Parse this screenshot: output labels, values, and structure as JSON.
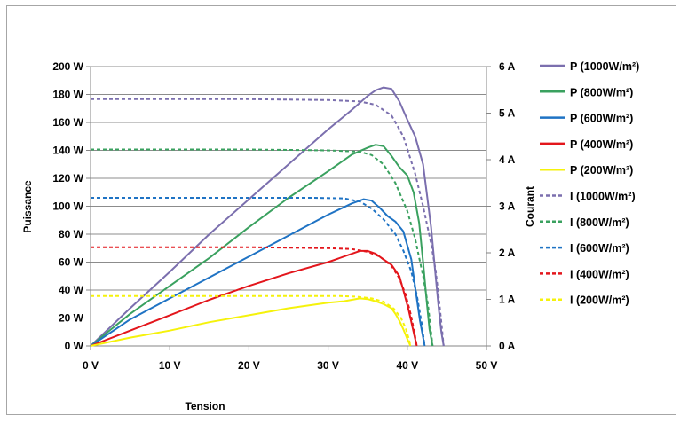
{
  "chart_data": {
    "type": "line",
    "title": "",
    "xlabel": "Tension",
    "ylabel": "Puissance",
    "y2label": "Courant",
    "xlim": [
      0,
      50
    ],
    "ylim": [
      0,
      200
    ],
    "y2lim": [
      0,
      6
    ],
    "grid": "horizontal",
    "legend_position": "right",
    "x_ticks": [
      {
        "value": 0,
        "label": "0 V"
      },
      {
        "value": 10,
        "label": "10 V"
      },
      {
        "value": 20,
        "label": "20 V"
      },
      {
        "value": 30,
        "label": "30 V"
      },
      {
        "value": 40,
        "label": "40 V"
      },
      {
        "value": 50,
        "label": "50 V"
      }
    ],
    "y_ticks": [
      {
        "value": 0,
        "label": "0 W"
      },
      {
        "value": 20,
        "label": "20 W"
      },
      {
        "value": 40,
        "label": "40 W"
      },
      {
        "value": 60,
        "label": "60 W"
      },
      {
        "value": 80,
        "label": "80 W"
      },
      {
        "value": 100,
        "label": "100 W"
      },
      {
        "value": 120,
        "label": "120 W"
      },
      {
        "value": 140,
        "label": "140 W"
      },
      {
        "value": 160,
        "label": "160 W"
      },
      {
        "value": 180,
        "label": "180 W"
      },
      {
        "value": 200,
        "label": "200 W"
      }
    ],
    "y2_ticks": [
      {
        "value": 0,
        "label": "0 A"
      },
      {
        "value": 1,
        "label": "1 A"
      },
      {
        "value": 2,
        "label": "2 A"
      },
      {
        "value": 3,
        "label": "3 A"
      },
      {
        "value": 4,
        "label": "4 A"
      },
      {
        "value": 5,
        "label": "5 A"
      },
      {
        "value": 6,
        "label": "6 A"
      }
    ],
    "series": [
      {
        "name": "P  (1000W/m²)",
        "axis": "left",
        "style": "solid",
        "color": "#7b6fae",
        "x": [
          0,
          5,
          10,
          15,
          20,
          25,
          30,
          33,
          35,
          36,
          37,
          38,
          39,
          40,
          41,
          42,
          43,
          43.5,
          44,
          44.3,
          44.6
        ],
        "y": [
          0,
          27,
          53,
          80,
          105,
          130,
          155,
          169,
          179,
          183,
          185,
          184,
          175,
          162,
          150,
          130,
          85,
          55,
          25,
          10,
          0
        ]
      },
      {
        "name": "P   (800W/m²)",
        "axis": "left",
        "style": "solid",
        "color": "#3aa15f",
        "x": [
          0,
          5,
          10,
          15,
          20,
          25,
          30,
          33,
          35,
          36,
          37,
          38,
          39,
          40,
          40.8,
          41.5,
          42,
          42.4,
          42.8,
          43.2
        ],
        "y": [
          0,
          23,
          43,
          63,
          85,
          106,
          125,
          137,
          142,
          144,
          143,
          136,
          128,
          122,
          110,
          88,
          60,
          35,
          12,
          0
        ]
      },
      {
        "name": "P  (600W/m²)",
        "axis": "left",
        "style": "solid",
        "color": "#1f73c4",
        "x": [
          0,
          5,
          10,
          15,
          20,
          25,
          30,
          33,
          34.5,
          35.5,
          36.5,
          37.5,
          38.5,
          39.5,
          40.5,
          41,
          41.6,
          42.2
        ],
        "y": [
          0,
          19,
          34,
          49,
          64,
          79,
          94,
          102,
          105,
          104,
          99,
          93,
          89,
          82,
          62,
          42,
          18,
          0
        ]
      },
      {
        "name": "P  (400W/m²)",
        "axis": "left",
        "style": "solid",
        "color": "#e3161c",
        "x": [
          0,
          5,
          10,
          15,
          20,
          25,
          30,
          33,
          34,
          35,
          36,
          37,
          38,
          39,
          39.5,
          40.2,
          40.8,
          41.2
        ],
        "y": [
          0,
          11,
          22,
          33,
          43,
          52,
          60,
          66,
          68,
          68,
          66,
          62,
          58,
          50,
          40,
          25,
          10,
          0
        ]
      },
      {
        "name": "P  (200W/m²)",
        "axis": "left",
        "style": "solid",
        "color": "#f5f20b",
        "x": [
          0,
          5,
          10,
          15,
          20,
          25,
          30,
          32,
          33,
          34,
          35,
          36,
          37,
          38,
          38.5,
          39,
          39.5,
          40,
          40.4
        ],
        "y": [
          0,
          6,
          11,
          17,
          22,
          27,
          31,
          32,
          33,
          34,
          33.5,
          32,
          30,
          27,
          23,
          18,
          12,
          5,
          0
        ]
      },
      {
        "name": "I  (1000W/m²)",
        "axis": "right",
        "style": "dashed",
        "color": "#7b6fae",
        "x": [
          0,
          10,
          20,
          30,
          34,
          36,
          38,
          39.5,
          41,
          42,
          43,
          43.6,
          44,
          44.3,
          44.6
        ],
        "y": [
          5.3,
          5.3,
          5.3,
          5.28,
          5.25,
          5.18,
          4.95,
          4.5,
          3.7,
          3,
          2.2,
          1.6,
          1,
          0.5,
          0
        ]
      },
      {
        "name": "I   (800W/m²)",
        "axis": "right",
        "style": "dashed",
        "color": "#3aa15f",
        "x": [
          0,
          10,
          20,
          30,
          34,
          35.5,
          37,
          38.5,
          40,
          41,
          42,
          42.6,
          43,
          43.2
        ],
        "y": [
          4.22,
          4.22,
          4.22,
          4.2,
          4.17,
          4.1,
          3.9,
          3.5,
          2.9,
          2.3,
          1.5,
          0.9,
          0.3,
          0
        ]
      },
      {
        "name": "I  (600W/m²)",
        "axis": "right",
        "style": "dashed",
        "color": "#1f73c4",
        "x": [
          0,
          10,
          20,
          28,
          32,
          34,
          35.5,
          37,
          38.5,
          39.5,
          40.5,
          41.2,
          41.8,
          42.2
        ],
        "y": [
          3.18,
          3.18,
          3.18,
          3.18,
          3.17,
          3.1,
          2.95,
          2.72,
          2.4,
          2.05,
          1.6,
          1.1,
          0.5,
          0
        ]
      },
      {
        "name": "I  (400W/m²)",
        "axis": "right",
        "style": "dashed",
        "color": "#e3161c",
        "x": [
          0,
          10,
          20,
          30,
          33,
          35,
          36.5,
          38,
          39,
          39.8,
          40.4,
          40.9,
          41.2
        ],
        "y": [
          2.12,
          2.12,
          2.12,
          2.1,
          2.08,
          2.02,
          1.92,
          1.72,
          1.45,
          1.1,
          0.7,
          0.3,
          0
        ]
      },
      {
        "name": "I  (200W/m²)",
        "axis": "right",
        "style": "dashed",
        "color": "#f5f20b",
        "x": [
          0,
          10,
          20,
          28,
          31.5,
          33.5,
          35.5,
          37,
          38.3,
          39.2,
          39.8,
          40.2,
          40.4
        ],
        "y": [
          1.07,
          1.07,
          1.07,
          1.07,
          1.07,
          1.06,
          1.02,
          0.95,
          0.8,
          0.6,
          0.38,
          0.15,
          0
        ]
      }
    ]
  }
}
